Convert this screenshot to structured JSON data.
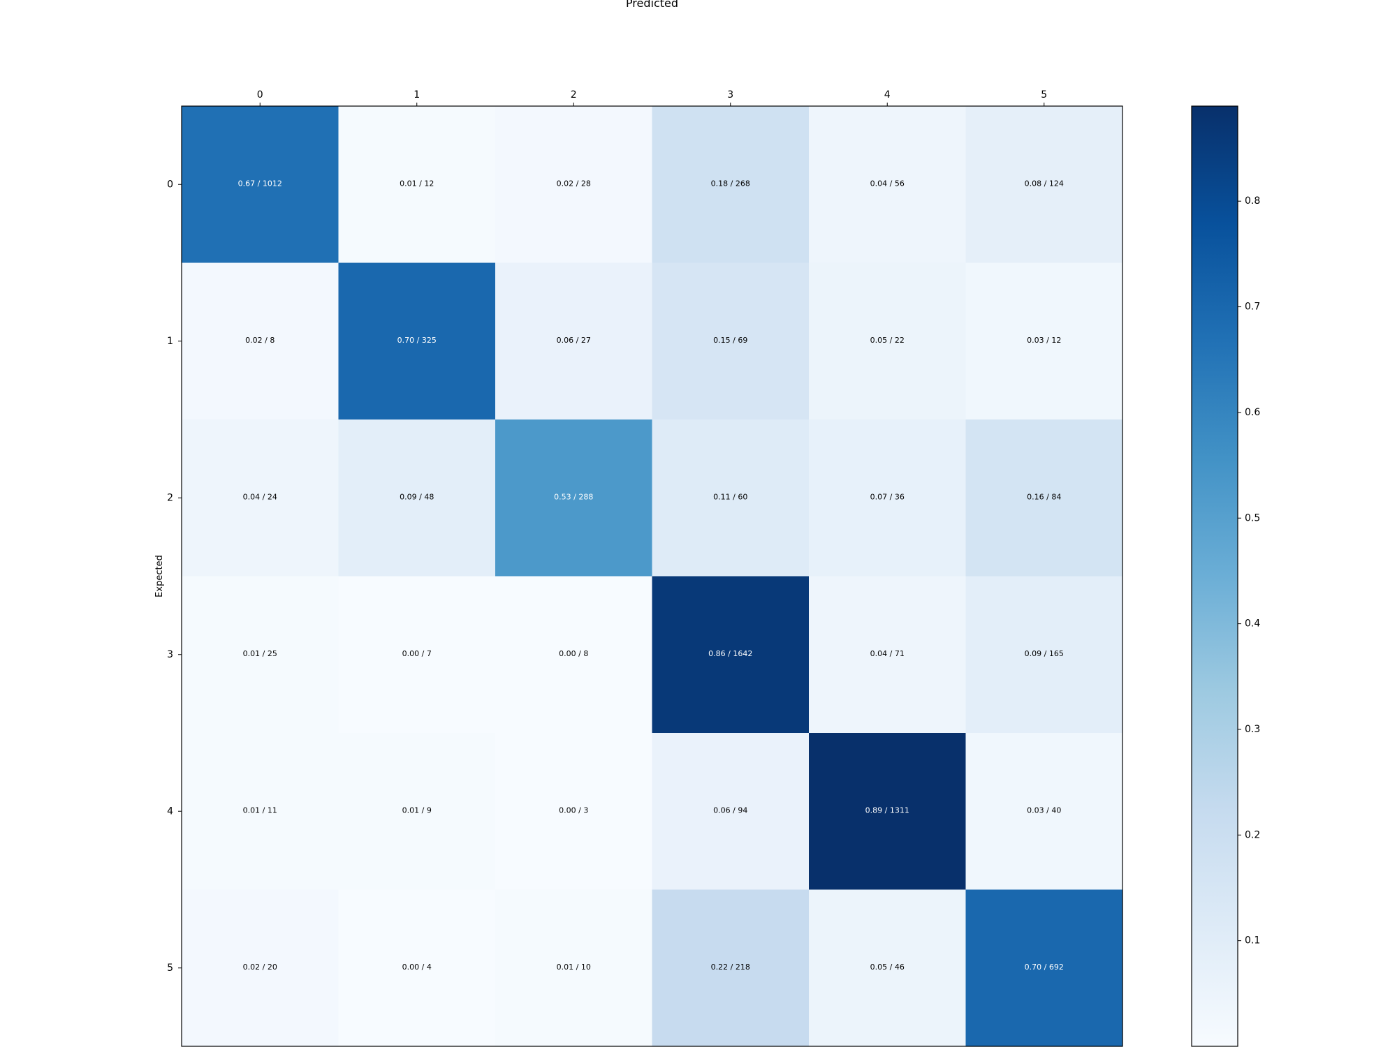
{
  "chart_data": {
    "type": "heatmap",
    "xlabel": "Predicted",
    "ylabel": "Expected",
    "x_categories": [
      "0",
      "1",
      "2",
      "3",
      "4",
      "5"
    ],
    "y_categories": [
      "0",
      "1",
      "2",
      "3",
      "4",
      "5"
    ],
    "values": [
      [
        0.67,
        0.01,
        0.02,
        0.18,
        0.04,
        0.08
      ],
      [
        0.02,
        0.7,
        0.06,
        0.15,
        0.05,
        0.03
      ],
      [
        0.04,
        0.09,
        0.53,
        0.11,
        0.07,
        0.16
      ],
      [
        0.01,
        0.0,
        0.0,
        0.86,
        0.04,
        0.09
      ],
      [
        0.01,
        0.01,
        0.0,
        0.06,
        0.89,
        0.03
      ],
      [
        0.02,
        0.0,
        0.01,
        0.22,
        0.05,
        0.7
      ]
    ],
    "counts": [
      [
        1012,
        12,
        28,
        268,
        56,
        124
      ],
      [
        8,
        325,
        27,
        69,
        22,
        12
      ],
      [
        24,
        48,
        288,
        60,
        36,
        84
      ],
      [
        25,
        7,
        8,
        1642,
        71,
        165
      ],
      [
        11,
        9,
        3,
        94,
        1311,
        40
      ],
      [
        20,
        4,
        10,
        218,
        46,
        692
      ]
    ],
    "cell_labels": [
      [
        "0.67 / 1012",
        "0.01 / 12",
        "0.02 / 28",
        "0.18 / 268",
        "0.04 / 56",
        "0.08 / 124"
      ],
      [
        "0.02 / 8",
        "0.70 / 325",
        "0.06 / 27",
        "0.15 / 69",
        "0.05 / 22",
        "0.03 / 12"
      ],
      [
        "0.04 / 24",
        "0.09 / 48",
        "0.53 / 288",
        "0.11 / 60",
        "0.07 / 36",
        "0.16 / 84"
      ],
      [
        "0.01 / 25",
        "0.00 / 7",
        "0.00 / 8",
        "0.86 / 1642",
        "0.04 / 71",
        "0.09 / 165"
      ],
      [
        "0.01 / 11",
        "0.01 / 9",
        "0.00 / 3",
        "0.06 / 94",
        "0.89 / 1311",
        "0.03 / 40"
      ],
      [
        "0.02 / 20",
        "0.00 / 4",
        "0.01 / 10",
        "0.22 / 218",
        "0.05 / 46",
        "0.70 / 692"
      ]
    ],
    "colorbar": {
      "colormap": "Blues",
      "range": [
        0.0,
        0.89
      ],
      "ticks": [
        0.1,
        0.2,
        0.3,
        0.4,
        0.5,
        0.6,
        0.7,
        0.8
      ],
      "tick_labels": [
        "0.1",
        "0.2",
        "0.3",
        "0.4",
        "0.5",
        "0.6",
        "0.7",
        "0.8"
      ]
    },
    "x_axis_position": "top",
    "grid": false,
    "colors": {
      "text_dark": "#000000",
      "text_light": "#ffffff",
      "frame": "#000000"
    }
  }
}
